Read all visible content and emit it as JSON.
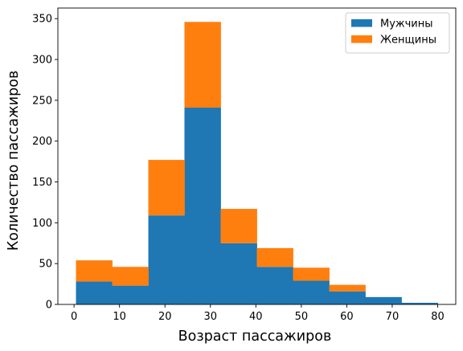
{
  "chart_data": {
    "type": "bar",
    "stacked": true,
    "histogram": true,
    "bin_edges": [
      0.42,
      8.38,
      16.34,
      24.29,
      32.25,
      40.21,
      48.17,
      56.13,
      64.08,
      72.04,
      80.0
    ],
    "series": [
      {
        "name": "Мужчины",
        "color": "#1f77b4",
        "values": [
          28,
          23,
          109,
          241,
          75,
          46,
          29,
          16,
          9,
          2
        ]
      },
      {
        "name": "Женщины",
        "color": "#ff7f0e",
        "values": [
          26,
          23,
          68,
          105,
          42,
          23,
          16,
          8,
          0,
          0
        ]
      }
    ],
    "title": "",
    "xlabel": "Возраст пассажиров",
    "ylabel": "Количество пассажиров",
    "xlim": [
      -3.56,
      83.98
    ],
    "ylim": [
      0,
      363
    ],
    "xticks": [
      0,
      10,
      20,
      30,
      40,
      50,
      60,
      70,
      80
    ],
    "yticks": [
      0,
      50,
      100,
      150,
      200,
      250,
      300,
      350
    ],
    "grid": false,
    "legend_position": "top-right"
  }
}
